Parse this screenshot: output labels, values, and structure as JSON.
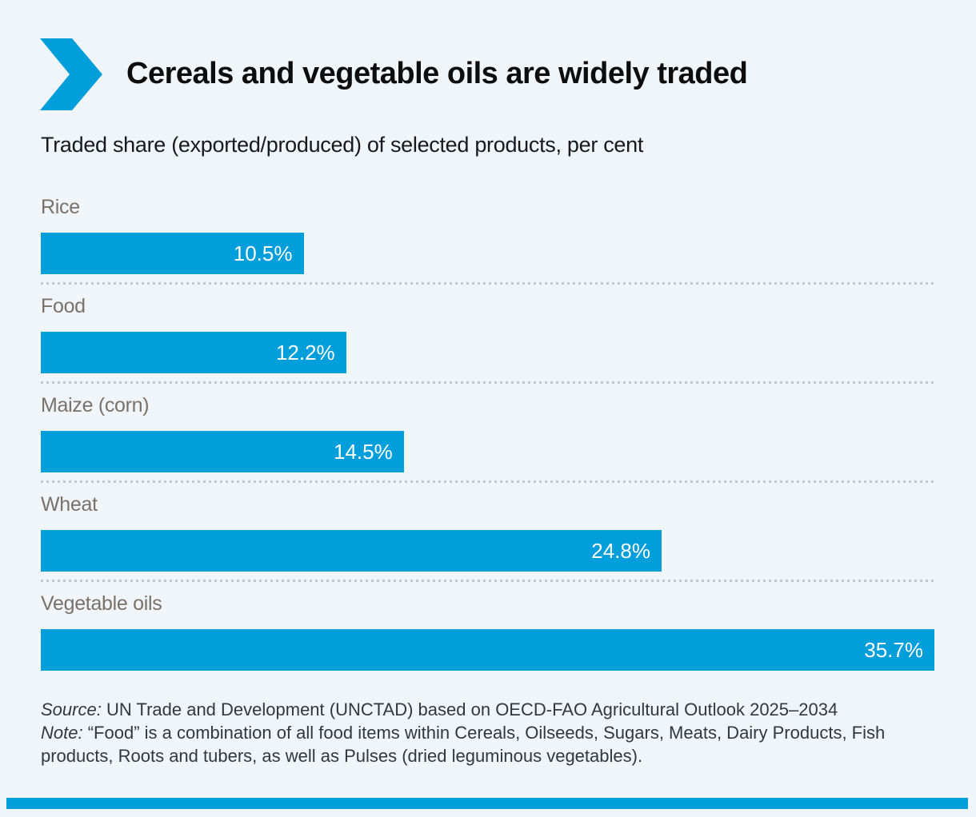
{
  "header": {
    "title": "Cereals and vegetable oils are widely traded"
  },
  "chart_data": {
    "type": "bar",
    "orientation": "horizontal",
    "title": "Cereals and vegetable oils are widely traded",
    "subtitle": "Traded share (exported/produced) of selected products, per cent",
    "unit": "per cent",
    "categories": [
      "Rice",
      "Food",
      "Maize (corn)",
      "Wheat",
      "Vegetable oils"
    ],
    "values": [
      10.5,
      12.2,
      14.5,
      24.8,
      35.7
    ],
    "value_labels": [
      "10.5%",
      "12.2%",
      "14.5%",
      "24.8%",
      "35.7%"
    ],
    "xlim": [
      0,
      35.7
    ],
    "grid": false,
    "legend": false,
    "value_label_position": "inside-right"
  },
  "footer": {
    "source_label": "Source:",
    "source_text": "UN Trade and Development (UNCTAD) based on OECD-FAO Agricultural Outlook 2025–2034",
    "note_label": "Note:",
    "note_text": "“Food” is a combination of all food items within Cereals, Oilseeds, Sugars, Meats, Dairy Products, Fish products, Roots and tubers, as well as Pulses (dried leguminous vegetables)."
  },
  "icons": {
    "chevron": "chevron-right-icon"
  },
  "colors": {
    "background": "#f0f5fa",
    "accent": "#009edb",
    "bar": "#009edb",
    "category_label": "#7a7169",
    "value_label": "#ffffff",
    "title": "#0d0d0d",
    "footer_text": "#32373d",
    "separator": "#c5c7c9"
  }
}
